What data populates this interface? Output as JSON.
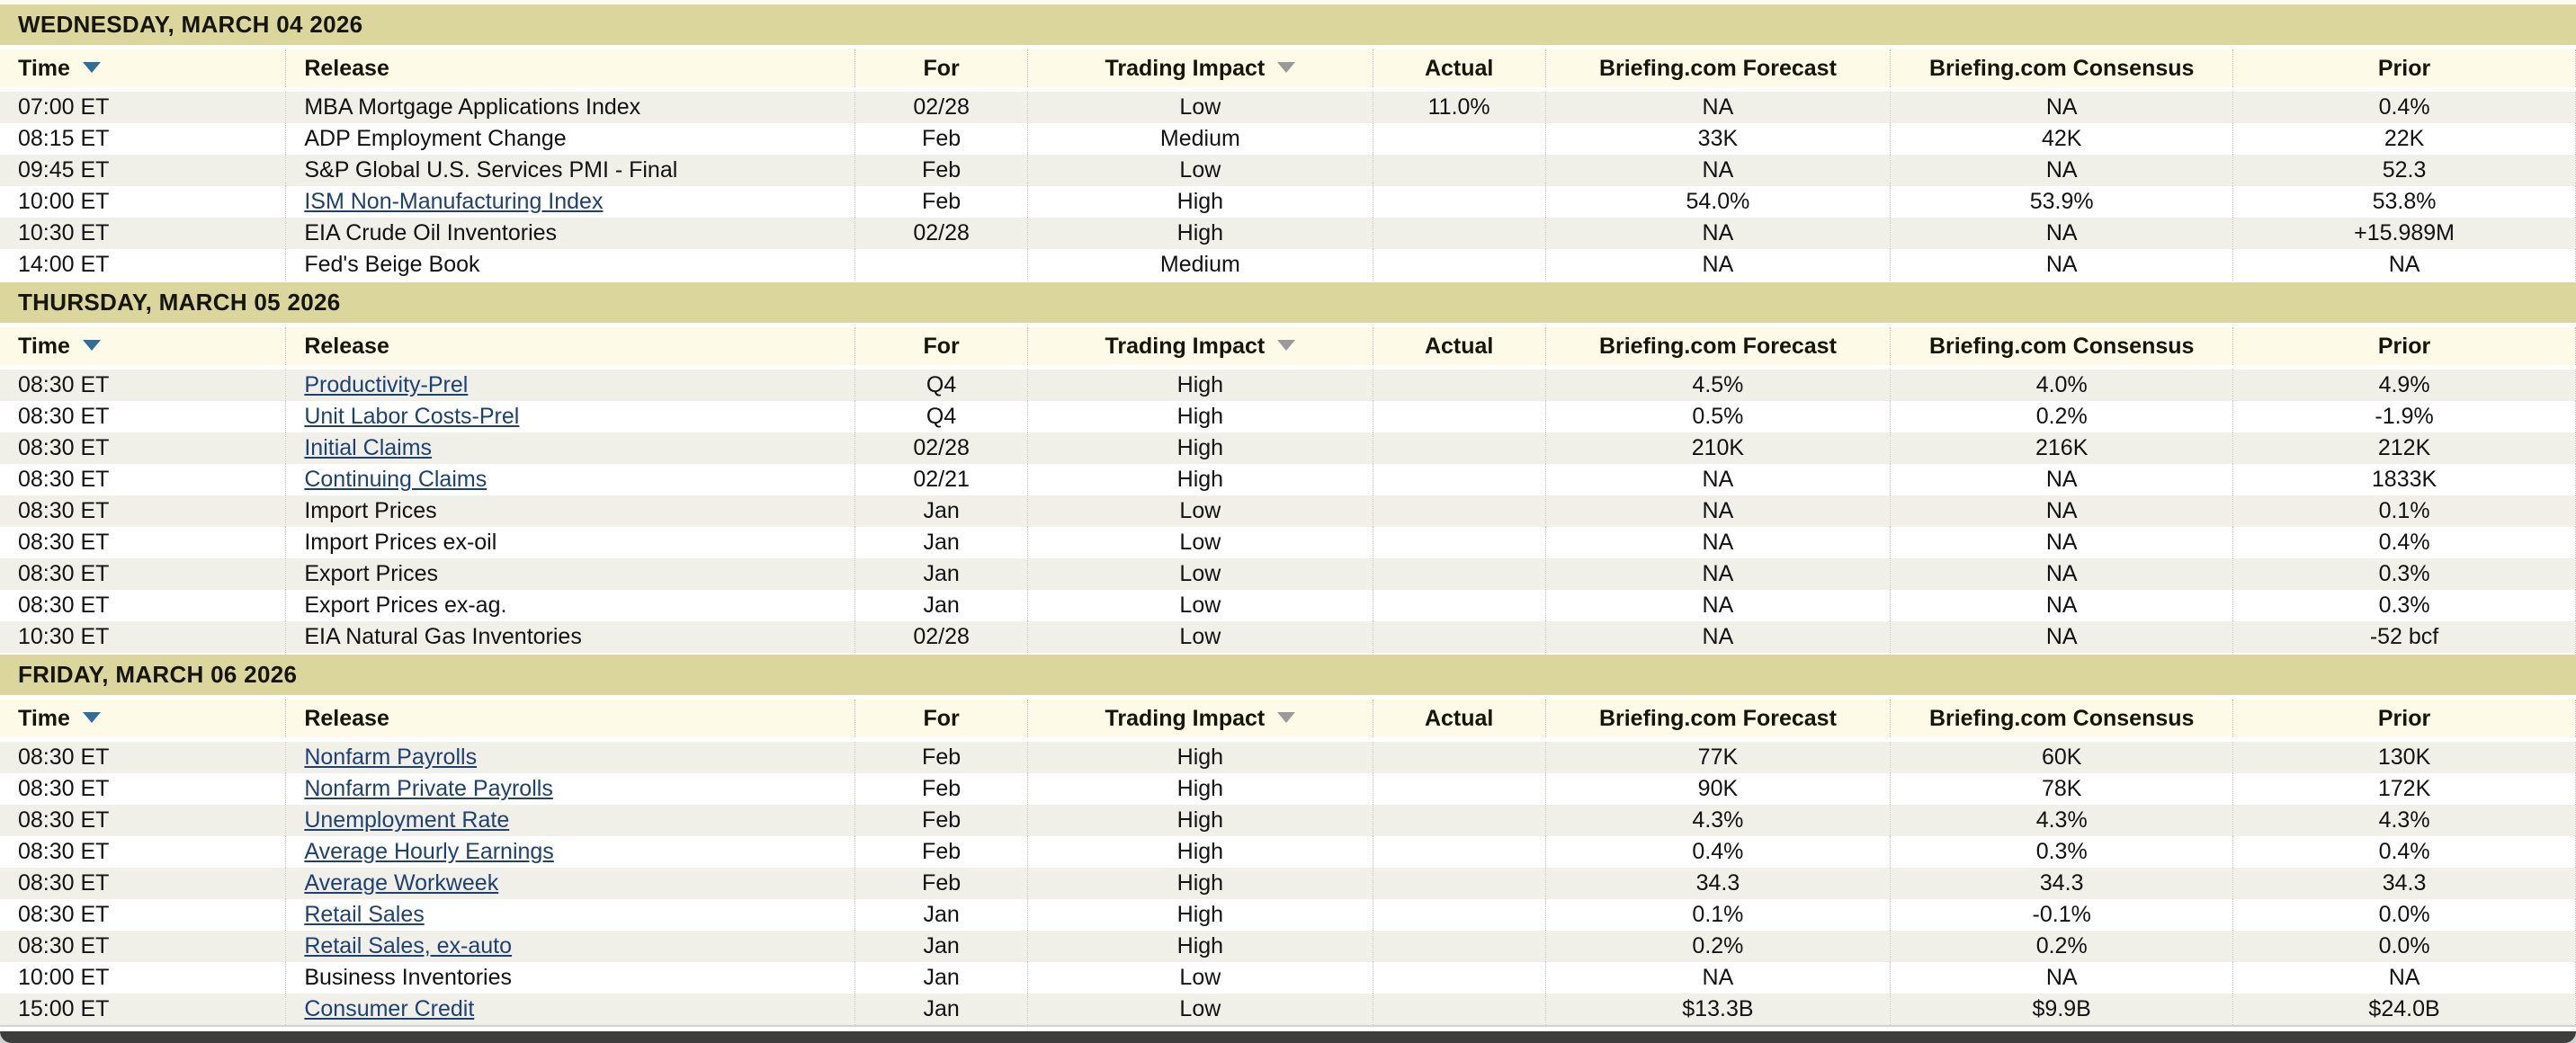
{
  "columns": [
    {
      "label": "Time",
      "key": "time",
      "align": "left",
      "sortable": true,
      "sort_arrow": "blue"
    },
    {
      "label": "Release",
      "key": "release",
      "align": "left",
      "sortable": false
    },
    {
      "label": "For",
      "key": "for",
      "align": "center",
      "sortable": false
    },
    {
      "label": "Trading Impact",
      "key": "impact",
      "align": "center",
      "sortable": true,
      "sort_arrow": "gray"
    },
    {
      "label": "Actual",
      "key": "actual",
      "align": "center",
      "sortable": false
    },
    {
      "label": "Briefing.com Forecast",
      "key": "forecast",
      "align": "center",
      "sortable": false
    },
    {
      "label": "Briefing.com Consensus",
      "key": "consensus",
      "align": "center",
      "sortable": false
    },
    {
      "label": "Prior",
      "key": "prior",
      "align": "center",
      "sortable": false
    }
  ],
  "sections": [
    {
      "date": "WEDNESDAY, MARCH 04 2026",
      "rows": [
        {
          "time": "07:00 ET",
          "release": "MBA Mortgage Applications Index",
          "link": false,
          "for": "02/28",
          "impact": "Low",
          "actual": "11.0%",
          "forecast": "NA",
          "consensus": "NA",
          "prior": "0.4%"
        },
        {
          "time": "08:15 ET",
          "release": "ADP Employment Change",
          "link": false,
          "for": "Feb",
          "impact": "Medium",
          "actual": "",
          "forecast": "33K",
          "consensus": "42K",
          "prior": "22K"
        },
        {
          "time": "09:45 ET",
          "release": "S&P Global U.S. Services PMI - Final",
          "link": false,
          "for": "Feb",
          "impact": "Low",
          "actual": "",
          "forecast": "NA",
          "consensus": "NA",
          "prior": "52.3"
        },
        {
          "time": "10:00 ET",
          "release": "ISM Non-Manufacturing Index",
          "link": true,
          "for": "Feb",
          "impact": "High",
          "actual": "",
          "forecast": "54.0%",
          "consensus": "53.9%",
          "prior": "53.8%"
        },
        {
          "time": "10:30 ET",
          "release": "EIA Crude Oil Inventories",
          "link": false,
          "for": "02/28",
          "impact": "High",
          "actual": "",
          "forecast": "NA",
          "consensus": "NA",
          "prior": "+15.989M"
        },
        {
          "time": "14:00 ET",
          "release": "Fed's Beige Book",
          "link": false,
          "for": "",
          "impact": "Medium",
          "actual": "",
          "forecast": "NA",
          "consensus": "NA",
          "prior": "NA"
        }
      ]
    },
    {
      "date": "THURSDAY, MARCH 05 2026",
      "rows": [
        {
          "time": "08:30 ET",
          "release": "Productivity-Prel",
          "link": true,
          "for": "Q4",
          "impact": "High",
          "actual": "",
          "forecast": "4.5%",
          "consensus": "4.0%",
          "prior": "4.9%"
        },
        {
          "time": "08:30 ET",
          "release": "Unit Labor Costs-Prel",
          "link": true,
          "for": "Q4",
          "impact": "High",
          "actual": "",
          "forecast": "0.5%",
          "consensus": "0.2%",
          "prior": "-1.9%"
        },
        {
          "time": "08:30 ET",
          "release": "Initial Claims",
          "link": true,
          "for": "02/28",
          "impact": "High",
          "actual": "",
          "forecast": "210K",
          "consensus": "216K",
          "prior": "212K"
        },
        {
          "time": "08:30 ET",
          "release": "Continuing Claims",
          "link": true,
          "for": "02/21",
          "impact": "High",
          "actual": "",
          "forecast": "NA",
          "consensus": "NA",
          "prior": "1833K"
        },
        {
          "time": "08:30 ET",
          "release": "Import Prices",
          "link": false,
          "for": "Jan",
          "impact": "Low",
          "actual": "",
          "forecast": "NA",
          "consensus": "NA",
          "prior": "0.1%"
        },
        {
          "time": "08:30 ET",
          "release": "Import Prices ex-oil",
          "link": false,
          "for": "Jan",
          "impact": "Low",
          "actual": "",
          "forecast": "NA",
          "consensus": "NA",
          "prior": "0.4%"
        },
        {
          "time": "08:30 ET",
          "release": "Export Prices",
          "link": false,
          "for": "Jan",
          "impact": "Low",
          "actual": "",
          "forecast": "NA",
          "consensus": "NA",
          "prior": "0.3%"
        },
        {
          "time": "08:30 ET",
          "release": "Export Prices ex-ag.",
          "link": false,
          "for": "Jan",
          "impact": "Low",
          "actual": "",
          "forecast": "NA",
          "consensus": "NA",
          "prior": "0.3%"
        },
        {
          "time": "10:30 ET",
          "release": "EIA Natural Gas Inventories",
          "link": false,
          "for": "02/28",
          "impact": "Low",
          "actual": "",
          "forecast": "NA",
          "consensus": "NA",
          "prior": "-52 bcf"
        }
      ]
    },
    {
      "date": "FRIDAY, MARCH 06 2026",
      "rows": [
        {
          "time": "08:30 ET",
          "release": "Nonfarm Payrolls",
          "link": true,
          "for": "Feb",
          "impact": "High",
          "actual": "",
          "forecast": "77K",
          "consensus": "60K",
          "prior": "130K"
        },
        {
          "time": "08:30 ET",
          "release": "Nonfarm Private Payrolls",
          "link": true,
          "for": "Feb",
          "impact": "High",
          "actual": "",
          "forecast": "90K",
          "consensus": "78K",
          "prior": "172K"
        },
        {
          "time": "08:30 ET",
          "release": "Unemployment Rate",
          "link": true,
          "for": "Feb",
          "impact": "High",
          "actual": "",
          "forecast": "4.3%",
          "consensus": "4.3%",
          "prior": "4.3%"
        },
        {
          "time": "08:30 ET",
          "release": "Average Hourly Earnings",
          "link": true,
          "for": "Feb",
          "impact": "High",
          "actual": "",
          "forecast": "0.4%",
          "consensus": "0.3%",
          "prior": "0.4%"
        },
        {
          "time": "08:30 ET",
          "release": "Average Workweek",
          "link": true,
          "for": "Feb",
          "impact": "High",
          "actual": "",
          "forecast": "34.3",
          "consensus": "34.3",
          "prior": "34.3"
        },
        {
          "time": "08:30 ET",
          "release": "Retail Sales",
          "link": true,
          "for": "Jan",
          "impact": "High",
          "actual": "",
          "forecast": "0.1%",
          "consensus": "-0.1%",
          "prior": "0.0%"
        },
        {
          "time": "08:30 ET",
          "release": "Retail Sales, ex-auto",
          "link": true,
          "for": "Jan",
          "impact": "High",
          "actual": "",
          "forecast": "0.2%",
          "consensus": "0.2%",
          "prior": "0.0%"
        },
        {
          "time": "10:00 ET",
          "release": "Business Inventories",
          "link": false,
          "for": "Jan",
          "impact": "Low",
          "actual": "",
          "forecast": "NA",
          "consensus": "NA",
          "prior": "NA"
        },
        {
          "time": "15:00 ET",
          "release": "Consumer Credit",
          "link": true,
          "for": "Jan",
          "impact": "Low",
          "actual": "",
          "forecast": "$13.3B",
          "consensus": "$9.9B",
          "prior": "$24.0B"
        }
      ]
    }
  ],
  "colors": {
    "day_band_bg": "#dbd69c",
    "column_header_bg": "#fdfae8",
    "row_alt_bg": "#f0f0e9",
    "row_bg": "#ffffff",
    "link": "#1c4176",
    "sort_arrow_time": "#2e6d9e",
    "sort_arrow_impact": "#9a9a9a",
    "footer_bar": "#3d3d3d"
  }
}
